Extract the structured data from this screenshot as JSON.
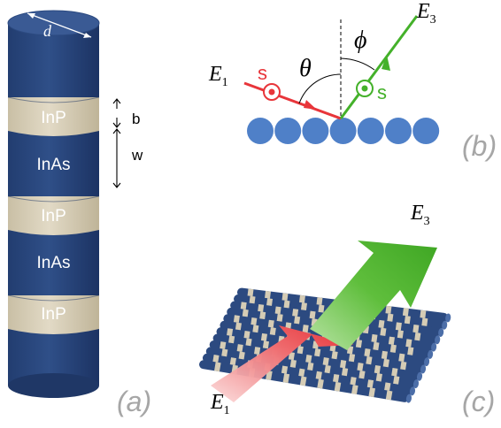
{
  "colors": {
    "rod": "#2c4a80",
    "rod_dark": "#1f3766",
    "rod_top": "#3b5c96",
    "band": "#d5ccb5",
    "atom": "#4f80c8",
    "incident": "#e8353a",
    "outgoing": "#44b12a",
    "panel_label": "#a6a6a6"
  },
  "panel_a": {
    "diameter_label": "d",
    "segments": [
      "InP",
      "InAs",
      "InP",
      "InAs",
      "InP"
    ],
    "barrier_label": "b",
    "well_label": "w",
    "panel_label": "(a)"
  },
  "panel_b": {
    "incident_field": "E",
    "incident_sub": "1",
    "outgoing_field": "E",
    "outgoing_sub": "3",
    "incident_pol": "s",
    "outgoing_pol": "s",
    "incident_angle": "θ",
    "outgoing_angle": "ϕ",
    "atom_count": 7,
    "panel_label": "(b)"
  },
  "panel_c": {
    "outgoing_field": "E",
    "outgoing_sub": "3",
    "incident_field": "E",
    "incident_sub": "1",
    "panel_label": "(c)"
  }
}
